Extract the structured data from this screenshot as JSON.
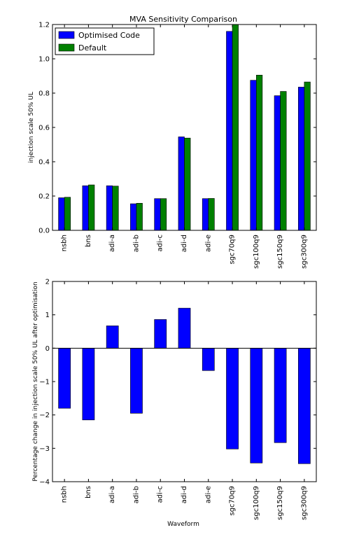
{
  "colors": {
    "series_1": "#0000ff",
    "series_2": "#008000",
    "axes": "#000000"
  },
  "chart_data": [
    {
      "type": "bar",
      "title": "MVA Sensitivity Comparison",
      "ylabel": "injection scale 50% UL",
      "xlabel": "",
      "ylim": [
        0,
        1.2
      ],
      "yticks": [
        "0.0",
        "0.2",
        "0.4",
        "0.6",
        "0.8",
        "1.0",
        "1.2"
      ],
      "categories": [
        "nsbh",
        "bns",
        "adi-a",
        "adi-b",
        "adi-c",
        "adi-d",
        "adi-e",
        "sgc70q9",
        "sgc100q9",
        "sgc150q9",
        "sgc300q9"
      ],
      "series": [
        {
          "name": "Optimised Code",
          "values": [
            0.19,
            0.26,
            0.26,
            0.155,
            0.185,
            0.545,
            0.185,
            1.16,
            0.875,
            0.785,
            0.835
          ]
        },
        {
          "name": "Default",
          "values": [
            0.193,
            0.265,
            0.258,
            0.158,
            0.185,
            0.538,
            0.186,
            1.2,
            0.905,
            0.81,
            0.865
          ]
        }
      ],
      "legend": "top-left",
      "grid": false
    },
    {
      "type": "bar",
      "title": "",
      "ylabel": "Percentage change in injection scale 50% UL after optimisation",
      "xlabel": "Waveform",
      "ylim": [
        -4,
        2
      ],
      "yticks": [
        "−4",
        "−3",
        "−2",
        "−1",
        "0",
        "1",
        "2"
      ],
      "categories": [
        "nsbh",
        "bns",
        "adi-a",
        "adi-b",
        "adi-c",
        "adi-d",
        "adi-e",
        "sgc70q9",
        "sgc100q9",
        "sgc150q9",
        "sgc300q9"
      ],
      "values": [
        -1.8,
        -2.15,
        0.67,
        -1.95,
        0.86,
        1.2,
        -0.67,
        -3.02,
        -3.44,
        -2.83,
        -3.46
      ],
      "grid": false
    }
  ]
}
